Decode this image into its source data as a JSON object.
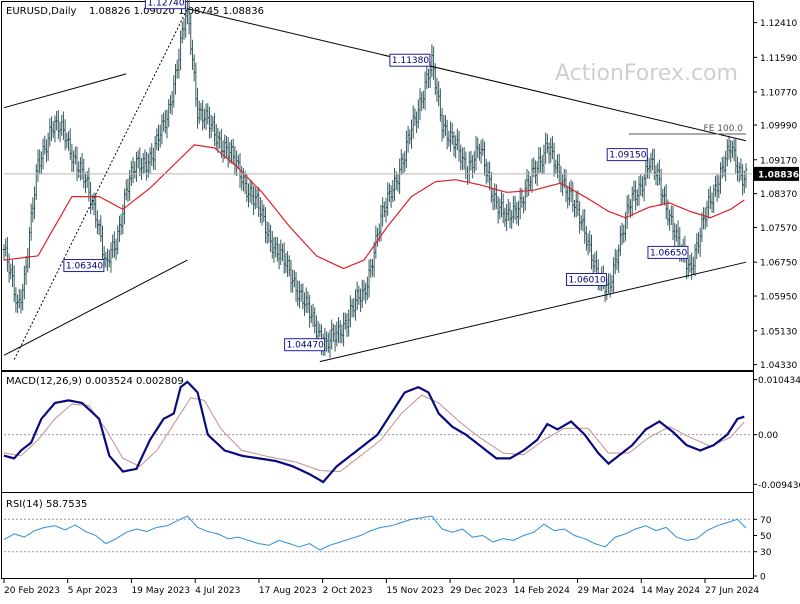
{
  "header": {
    "symbol": "EURUSD,Daily",
    "ohlc": "1.08826 1.09020 1.08745 1.08836"
  },
  "watermark": "ActionForex.com",
  "colors": {
    "bars": "#355a5e",
    "ma": "#e0202a",
    "macd_line": "#0a0a80",
    "macd_signal": "#c49a9a",
    "rsi_line": "#2e8fd8",
    "trendline": "#000000",
    "label_border": "#2222a0",
    "label_text": "#00007a",
    "price_box": "#000000",
    "watermark": "#cfcfcf"
  },
  "chart_data": [
    {
      "type": "ohlc",
      "title": "EURUSD,Daily",
      "y_ticks": [
        "1.12410",
        "1.11590",
        "1.10770",
        "1.09990",
        "1.09170",
        "1.08370",
        "1.07570",
        "1.06750",
        "1.05950",
        "1.05130",
        "1.04330"
      ],
      "x_ticks": [
        "20 Feb 2023",
        "5 Apr 2023",
        "19 May 2023",
        "4 Jul 2023",
        "17 Aug 2023",
        "2 Oct 2023",
        "15 Nov 2023",
        "29 Dec 2023",
        "14 Feb 2024",
        "29 Mar 2024",
        "14 May 2024",
        "27 Jun 2024"
      ],
      "ylim": [
        1.0425,
        1.1285
      ],
      "current_price": "1.08836",
      "price_path": [
        [
          0,
          1.0705
        ],
        [
          8,
          1.057
        ],
        [
          12,
          1.064
        ],
        [
          20,
          1.09
        ],
        [
          28,
          1.1
        ],
        [
          36,
          1.0975
        ],
        [
          46,
          1.088
        ],
        [
          55,
          1.0785
        ],
        [
          60,
          1.066
        ],
        [
          66,
          1.072
        ],
        [
          72,
          1.085
        ],
        [
          78,
          1.09
        ],
        [
          88,
          1.093
        ],
        [
          96,
          1.102
        ],
        [
          102,
          1.114
        ],
        [
          108,
          1.1274
        ],
        [
          114,
          1.104
        ],
        [
          122,
          1.099
        ],
        [
          130,
          1.095
        ],
        [
          140,
          1.088
        ],
        [
          150,
          1.08
        ],
        [
          160,
          1.0705
        ],
        [
          170,
          1.064
        ],
        [
          180,
          1.055
        ],
        [
          190,
          1.048
        ],
        [
          196,
          1.05
        ],
        [
          204,
          1.056
        ],
        [
          212,
          1.06
        ],
        [
          220,
          1.074
        ],
        [
          228,
          1.085
        ],
        [
          236,
          1.092
        ],
        [
          240,
          1.099
        ],
        [
          246,
          1.107
        ],
        [
          252,
          1.1138
        ],
        [
          258,
          1.101
        ],
        [
          264,
          1.096
        ],
        [
          272,
          1.09
        ],
        [
          280,
          1.094
        ],
        [
          288,
          1.084
        ],
        [
          296,
          1.077
        ],
        [
          304,
          1.082
        ],
        [
          312,
          1.088
        ],
        [
          320,
          1.096
        ],
        [
          326,
          1.088
        ],
        [
          334,
          1.084
        ],
        [
          340,
          1.076
        ],
        [
          346,
          1.07
        ],
        [
          352,
          1.062
        ],
        [
          356,
          1.0601
        ],
        [
          362,
          1.072
        ],
        [
          368,
          1.08
        ],
        [
          374,
          1.085
        ],
        [
          380,
          1.0915
        ],
        [
          386,
          1.086
        ],
        [
          392,
          1.079
        ],
        [
          398,
          1.07
        ],
        [
          404,
          1.0665
        ],
        [
          410,
          1.074
        ],
        [
          416,
          1.082
        ],
        [
          422,
          1.089
        ],
        [
          428,
          1.094
        ],
        [
          434,
          1.0884
        ]
      ],
      "ma_path": [
        [
          0,
          1.068
        ],
        [
          20,
          1.069
        ],
        [
          40,
          1.083
        ],
        [
          56,
          1.083
        ],
        [
          70,
          1.08
        ],
        [
          86,
          1.085
        ],
        [
          100,
          1.0905
        ],
        [
          112,
          1.0952
        ],
        [
          124,
          1.0945
        ],
        [
          136,
          1.0905
        ],
        [
          152,
          1.084
        ],
        [
          168,
          1.076
        ],
        [
          184,
          1.069
        ],
        [
          200,
          1.066
        ],
        [
          212,
          1.068
        ],
        [
          226,
          1.076
        ],
        [
          240,
          1.083
        ],
        [
          254,
          1.0865
        ],
        [
          266,
          1.087
        ],
        [
          280,
          1.0858
        ],
        [
          296,
          1.084
        ],
        [
          312,
          1.0845
        ],
        [
          328,
          1.0862
        ],
        [
          344,
          1.0825
        ],
        [
          356,
          1.0795
        ],
        [
          366,
          1.078
        ],
        [
          380,
          1.0805
        ],
        [
          392,
          1.0815
        ],
        [
          404,
          1.0795
        ],
        [
          416,
          1.078
        ],
        [
          428,
          1.08
        ],
        [
          436,
          1.0822
        ]
      ],
      "annotations": [
        {
          "text": "1.12740",
          "value": 1.1274,
          "bar": 108
        },
        {
          "text": "1.11380",
          "value": 1.1138,
          "bar": 252
        },
        {
          "text": "1.09150",
          "value": 1.0915,
          "bar": 380
        },
        {
          "text": "1.06340",
          "value": 1.0634,
          "bar": 60
        },
        {
          "text": "1.06650",
          "value": 1.0665,
          "bar": 404
        },
        {
          "text": "1.06010",
          "value": 1.0601,
          "bar": 356
        },
        {
          "text": "1.04470",
          "value": 1.0447,
          "bar": 190
        }
      ],
      "fe_label": "FE 100.0",
      "fe_value": 1.0978
    },
    {
      "type": "line",
      "title": "MACD(12,26,9) 0.003524 0.002809",
      "y_ticks": [
        "0.010434",
        "0.00",
        "-0.009436"
      ],
      "ylim": [
        -0.0105,
        0.0115
      ],
      "macd": [
        [
          0,
          -0.004
        ],
        [
          6,
          -0.0045
        ],
        [
          10,
          -0.003
        ],
        [
          16,
          -0.0015
        ],
        [
          22,
          0.003
        ],
        [
          30,
          0.006
        ],
        [
          38,
          0.0065
        ],
        [
          46,
          0.006
        ],
        [
          56,
          0.003
        ],
        [
          62,
          -0.004
        ],
        [
          70,
          -0.007
        ],
        [
          78,
          -0.0065
        ],
        [
          86,
          -0.001
        ],
        [
          94,
          0.003
        ],
        [
          100,
          0.004
        ],
        [
          104,
          0.009
        ],
        [
          108,
          0.01
        ],
        [
          114,
          0.008
        ],
        [
          120,
          0.0
        ],
        [
          130,
          -0.003
        ],
        [
          140,
          -0.004
        ],
        [
          150,
          -0.0045
        ],
        [
          160,
          -0.005
        ],
        [
          170,
          -0.006
        ],
        [
          180,
          -0.0075
        ],
        [
          188,
          -0.009
        ],
        [
          196,
          -0.006
        ],
        [
          204,
          -0.004
        ],
        [
          212,
          -0.002
        ],
        [
          220,
          0.0
        ],
        [
          228,
          0.004
        ],
        [
          236,
          0.008
        ],
        [
          244,
          0.009
        ],
        [
          250,
          0.008
        ],
        [
          256,
          0.004
        ],
        [
          264,
          0.0015
        ],
        [
          272,
          0.0
        ],
        [
          280,
          -0.002
        ],
        [
          290,
          -0.0045
        ],
        [
          298,
          -0.0045
        ],
        [
          306,
          -0.003
        ],
        [
          314,
          -0.001
        ],
        [
          320,
          0.002
        ],
        [
          326,
          0.001
        ],
        [
          334,
          0.0025
        ],
        [
          342,
          0.0
        ],
        [
          350,
          -0.0035
        ],
        [
          356,
          -0.0055
        ],
        [
          362,
          -0.004
        ],
        [
          370,
          -0.002
        ],
        [
          378,
          0.001
        ],
        [
          386,
          0.0025
        ],
        [
          394,
          0.0005
        ],
        [
          402,
          -0.002
        ],
        [
          410,
          -0.003
        ],
        [
          418,
          -0.002
        ],
        [
          426,
          0.0
        ],
        [
          432,
          0.003
        ],
        [
          437,
          0.0035
        ]
      ],
      "signal": [
        [
          0,
          -0.0035
        ],
        [
          10,
          -0.004
        ],
        [
          20,
          -0.001
        ],
        [
          30,
          0.003
        ],
        [
          40,
          0.0058
        ],
        [
          50,
          0.0055
        ],
        [
          60,
          0.001
        ],
        [
          70,
          -0.0045
        ],
        [
          80,
          -0.006
        ],
        [
          90,
          -0.003
        ],
        [
          100,
          0.002
        ],
        [
          110,
          0.007
        ],
        [
          118,
          0.0065
        ],
        [
          128,
          0.001
        ],
        [
          140,
          -0.003
        ],
        [
          156,
          -0.0042
        ],
        [
          172,
          -0.0052
        ],
        [
          186,
          -0.0068
        ],
        [
          198,
          -0.007
        ],
        [
          210,
          -0.004
        ],
        [
          222,
          -0.001
        ],
        [
          234,
          0.004
        ],
        [
          246,
          0.0075
        ],
        [
          256,
          0.006
        ],
        [
          268,
          0.0025
        ],
        [
          280,
          -0.0005
        ],
        [
          294,
          -0.0035
        ],
        [
          306,
          -0.0038
        ],
        [
          318,
          -0.001
        ],
        [
          330,
          0.0012
        ],
        [
          344,
          0.0012
        ],
        [
          356,
          -0.0035
        ],
        [
          368,
          -0.0035
        ],
        [
          380,
          -0.0005
        ],
        [
          392,
          0.0015
        ],
        [
          404,
          -0.0005
        ],
        [
          416,
          -0.0022
        ],
        [
          428,
          -0.0005
        ],
        [
          437,
          0.0028
        ]
      ]
    },
    {
      "type": "line",
      "title": "RSI(14) 58.7535",
      "y_ticks": [
        "70",
        "50",
        "30",
        "0"
      ],
      "ylim": [
        0,
        100
      ],
      "rsi": [
        [
          0,
          45
        ],
        [
          6,
          52
        ],
        [
          12,
          48
        ],
        [
          18,
          56
        ],
        [
          24,
          60
        ],
        [
          30,
          62
        ],
        [
          36,
          57
        ],
        [
          42,
          63
        ],
        [
          48,
          55
        ],
        [
          54,
          50
        ],
        [
          60,
          40
        ],
        [
          66,
          46
        ],
        [
          72,
          54
        ],
        [
          78,
          58
        ],
        [
          84,
          55
        ],
        [
          90,
          60
        ],
        [
          96,
          62
        ],
        [
          102,
          68
        ],
        [
          108,
          74
        ],
        [
          114,
          60
        ],
        [
          120,
          55
        ],
        [
          126,
          52
        ],
        [
          132,
          46
        ],
        [
          138,
          48
        ],
        [
          144,
          44
        ],
        [
          150,
          40
        ],
        [
          156,
          38
        ],
        [
          162,
          44
        ],
        [
          168,
          40
        ],
        [
          174,
          36
        ],
        [
          180,
          40
        ],
        [
          186,
          32
        ],
        [
          192,
          38
        ],
        [
          198,
          42
        ],
        [
          204,
          46
        ],
        [
          210,
          50
        ],
        [
          216,
          56
        ],
        [
          222,
          60
        ],
        [
          228,
          62
        ],
        [
          234,
          66
        ],
        [
          240,
          70
        ],
        [
          246,
          72
        ],
        [
          252,
          74
        ],
        [
          258,
          58
        ],
        [
          264,
          54
        ],
        [
          270,
          58
        ],
        [
          276,
          48
        ],
        [
          282,
          50
        ],
        [
          288,
          42
        ],
        [
          294,
          46
        ],
        [
          300,
          44
        ],
        [
          306,
          50
        ],
        [
          312,
          54
        ],
        [
          318,
          64
        ],
        [
          324,
          56
        ],
        [
          330,
          58
        ],
        [
          336,
          50
        ],
        [
          342,
          46
        ],
        [
          348,
          40
        ],
        [
          354,
          36
        ],
        [
          360,
          48
        ],
        [
          366,
          52
        ],
        [
          372,
          58
        ],
        [
          378,
          62
        ],
        [
          384,
          56
        ],
        [
          390,
          60
        ],
        [
          396,
          48
        ],
        [
          402,
          44
        ],
        [
          408,
          46
        ],
        [
          414,
          56
        ],
        [
          420,
          62
        ],
        [
          426,
          66
        ],
        [
          432,
          70
        ],
        [
          437,
          59
        ]
      ]
    }
  ]
}
